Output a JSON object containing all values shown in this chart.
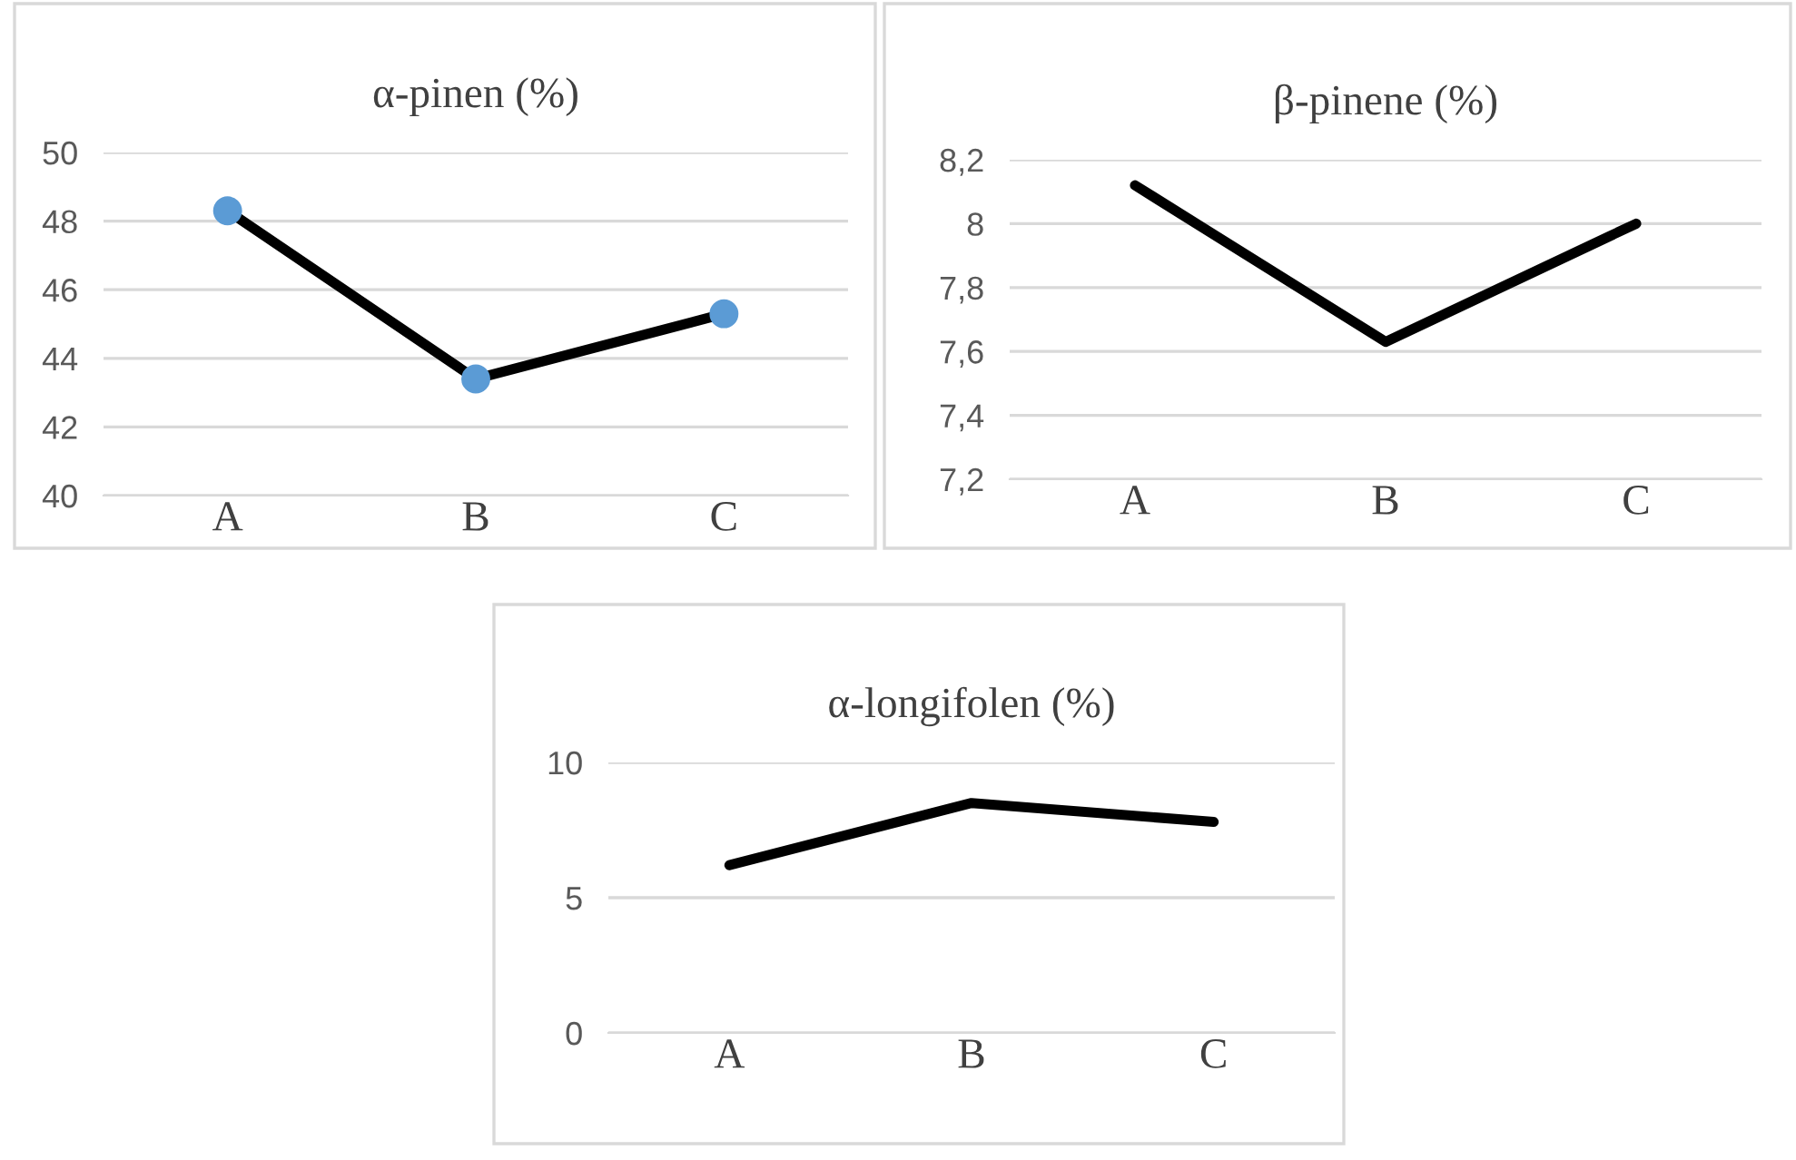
{
  "chart_data": [
    {
      "type": "line",
      "title": "α-pinen (%)",
      "categories": [
        "A",
        "B",
        "C"
      ],
      "series": [
        {
          "color": "#000000",
          "values": [
            48.3,
            43.4,
            45.3
          ]
        },
        {
          "type": "scatter",
          "color": "#5b9bd5",
          "marker": "circle",
          "values": [
            48.3,
            43.4,
            45.3
          ]
        }
      ],
      "ylim": [
        40,
        50
      ],
      "yticks": [
        40,
        42,
        44,
        46,
        48,
        50
      ],
      "grid": "y",
      "marker": "none"
    },
    {
      "type": "line",
      "title": "β-pinene (%)",
      "categories": [
        "A",
        "B",
        "C"
      ],
      "series": [
        {
          "color": "#000000",
          "values": [
            8.12,
            7.63,
            8.0
          ]
        }
      ],
      "ylim": [
        7.2,
        8.2
      ],
      "yticks": [
        {
          "value": 7.2,
          "label": "7,2"
        },
        {
          "value": 7.4,
          "label": "7,4"
        },
        {
          "value": 7.6,
          "label": "7,6"
        },
        {
          "value": 7.8,
          "label": "7,8"
        },
        {
          "value": 8,
          "label": "8"
        },
        {
          "value": 8.2,
          "label": "8,2"
        }
      ],
      "grid": "y",
      "marker": "none"
    },
    {
      "type": "line",
      "title": "α-longifolen (%)",
      "categories": [
        "A",
        "B",
        "C"
      ],
      "series": [
        {
          "color": "#000000",
          "values": [
            6.2,
            8.5,
            7.8
          ]
        }
      ],
      "ylim": [
        0,
        10
      ],
      "yticks": [
        0,
        5,
        10
      ],
      "grid": "y",
      "marker": "none"
    }
  ]
}
